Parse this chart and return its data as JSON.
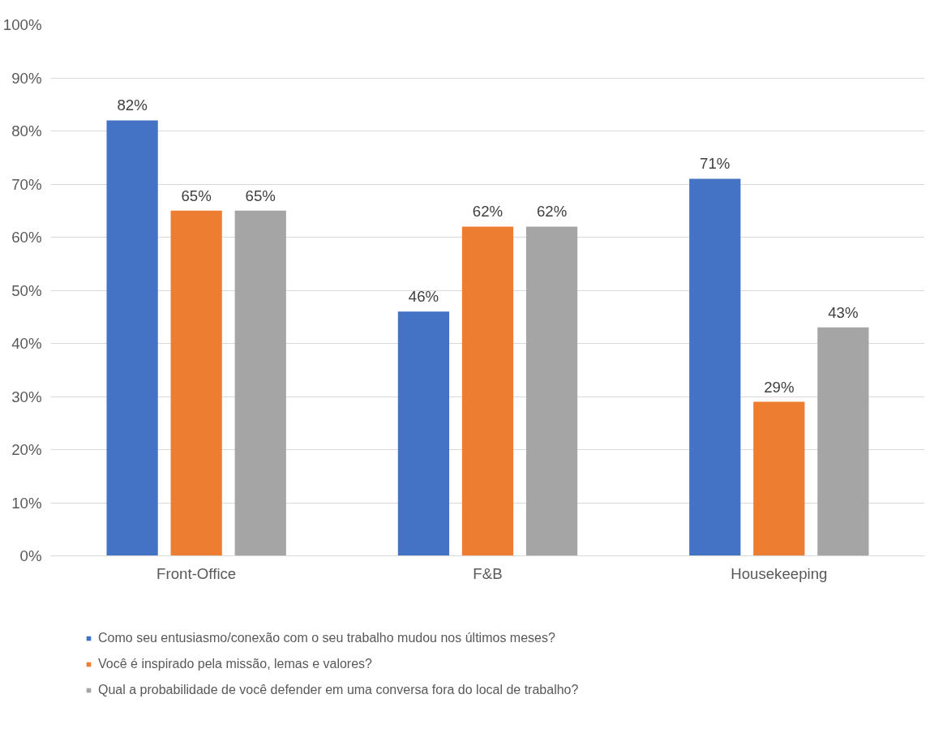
{
  "chart_data": {
    "type": "bar",
    "categories": [
      "Front-Office",
      "F&B",
      "Housekeeping"
    ],
    "series": [
      {
        "name": "Como seu entusiasmo/conexão com o seu trabalho mudou nos últimos meses?",
        "color": "#4472c4",
        "values": [
          82,
          46,
          71
        ],
        "value_labels": [
          "82%",
          "46%",
          "71%"
        ]
      },
      {
        "name": "Você é inspirado pela missão, lemas e valores?",
        "color": "#ed7d31",
        "values": [
          65,
          62,
          29
        ],
        "value_labels": [
          "65%",
          "62%",
          "29%"
        ]
      },
      {
        "name": "Qual a probabilidade de você defender em uma conversa fora do local de trabalho?",
        "color": "#a5a5a5",
        "values": [
          65,
          62,
          43
        ],
        "value_labels": [
          "65%",
          "62%",
          "43%"
        ]
      }
    ],
    "ylim": [
      0,
      100
    ],
    "yticks": [
      {
        "value": 0,
        "label": "0%"
      },
      {
        "value": 10,
        "label": "10%"
      },
      {
        "value": 20,
        "label": "20%"
      },
      {
        "value": 30,
        "label": "30%"
      },
      {
        "value": 40,
        "label": "40%"
      },
      {
        "value": 50,
        "label": "50%"
      },
      {
        "value": 60,
        "label": "60%"
      },
      {
        "value": 70,
        "label": "70%"
      },
      {
        "value": 80,
        "label": "80%"
      },
      {
        "value": 90,
        "label": "90%"
      },
      {
        "value": 100,
        "label": "100%"
      }
    ],
    "grid": "y",
    "legend": "bottom"
  }
}
